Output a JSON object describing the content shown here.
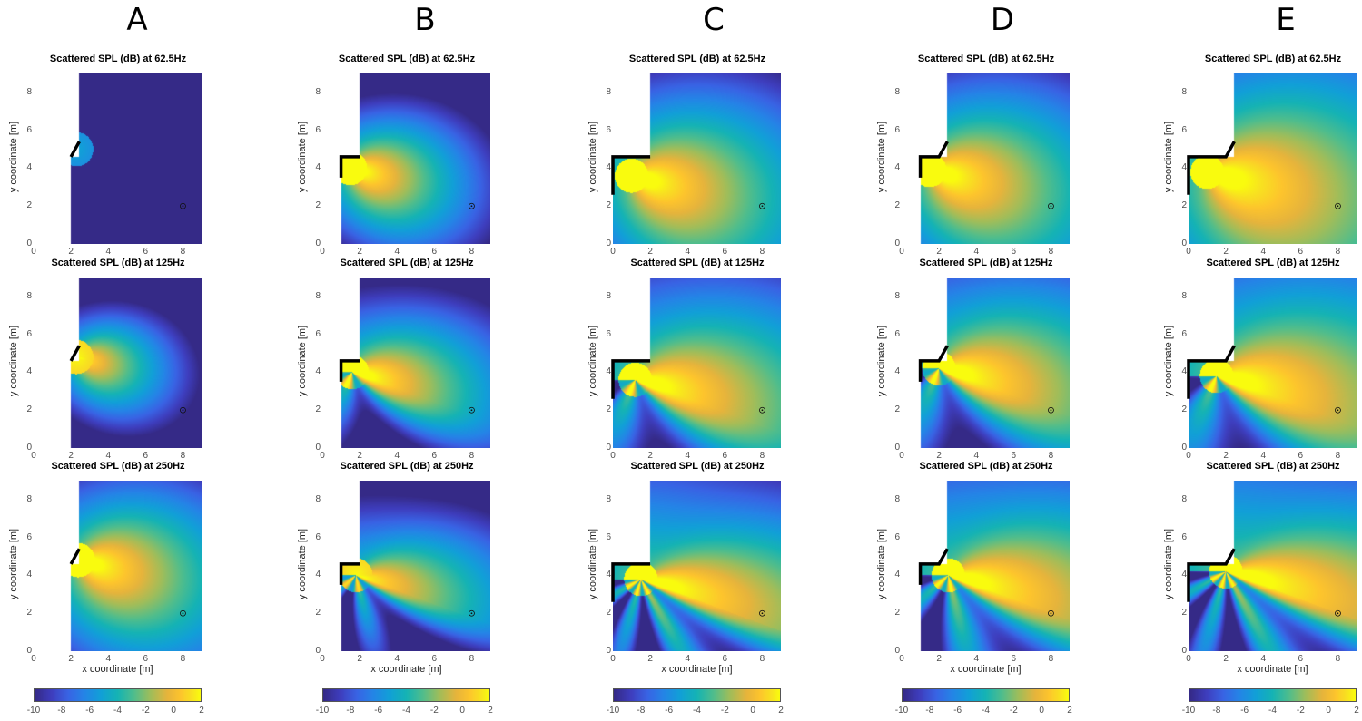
{
  "chart_data": {
    "type": "heatmap",
    "columns": [
      "A",
      "B",
      "C",
      "D",
      "E"
    ],
    "rows": [
      {
        "frequency": "62.5Hz",
        "title": "Scattered SPL (dB) at 62.5Hz"
      },
      {
        "frequency": "125Hz",
        "title": "Scattered SPL (dB) at 125Hz"
      },
      {
        "frequency": "250Hz",
        "title": "Scattered SPL (dB) at 250Hz"
      }
    ],
    "xlabel": "x coordinate [m]",
    "ylabel": "y coordinate [m]",
    "xlim": [
      0,
      9
    ],
    "ylim": [
      0,
      9
    ],
    "xticks": [
      0,
      2,
      4,
      6,
      8
    ],
    "yticks": [
      0,
      2,
      4,
      6,
      8
    ],
    "colorbar": {
      "colormap": "parula",
      "clim": [
        -10,
        2
      ],
      "ticks": [
        -10,
        -8,
        -6,
        -4,
        -2,
        0,
        2
      ]
    },
    "receiver": {
      "x": 8,
      "y": 2,
      "marker": "circled-dot"
    },
    "grid": false,
    "scatterers": {
      "A": {
        "outline": [
          [
            2,
            4.6
          ],
          [
            2.45,
            5.4
          ]
        ],
        "domain_left_x": 2,
        "wall_x": 2.45
      },
      "B": {
        "outline": [
          [
            1,
            3.5
          ],
          [
            1,
            4.6
          ],
          [
            2,
            4.6
          ]
        ],
        "domain_left_x": 1,
        "wall_x": 2
      },
      "C": {
        "outline": [
          [
            0,
            2.6
          ],
          [
            0,
            4.6
          ],
          [
            2,
            4.6
          ]
        ],
        "domain_left_x": 0,
        "wall_x": 2
      },
      "D": {
        "outline": [
          [
            1,
            3.5
          ],
          [
            1,
            4.6
          ],
          [
            2,
            4.6
          ],
          [
            2.45,
            5.4
          ]
        ],
        "domain_left_x": 1,
        "wall_x": 2.45
      },
      "E": {
        "outline": [
          [
            0,
            2.6
          ],
          [
            0,
            4.6
          ],
          [
            2,
            4.6
          ],
          [
            2.45,
            5.4
          ]
        ],
        "domain_left_x": 0,
        "wall_x": 2.45
      }
    },
    "panels": [
      {
        "col": "A",
        "row": 0,
        "source": [
          2.3,
          5.0
        ],
        "peak_db": -6,
        "reach_m": 0.5,
        "lobes": 0
      },
      {
        "col": "A",
        "row": 1,
        "source": [
          2.3,
          4.8
        ],
        "peak_db": 1,
        "reach_m": 4.2,
        "lobes": 0
      },
      {
        "col": "A",
        "row": 2,
        "source": [
          2.4,
          4.8
        ],
        "peak_db": 2,
        "reach_m": 7,
        "lobes": 0
      },
      {
        "col": "B",
        "row": 0,
        "source": [
          1.5,
          4.0
        ],
        "peak_db": 2,
        "reach_m": 5,
        "lobes": 0
      },
      {
        "col": "B",
        "row": 1,
        "source": [
          1.6,
          4.0
        ],
        "peak_db": 2,
        "reach_m": 6.5,
        "lobes": 1
      },
      {
        "col": "B",
        "row": 2,
        "source": [
          1.8,
          4.0
        ],
        "peak_db": 1,
        "reach_m": 7.5,
        "lobes": 2
      },
      {
        "col": "C",
        "row": 0,
        "source": [
          1.0,
          3.6
        ],
        "peak_db": 2,
        "reach_m": 8,
        "lobes": 0
      },
      {
        "col": "C",
        "row": 1,
        "source": [
          1.2,
          3.6
        ],
        "peak_db": 2,
        "reach_m": 10,
        "lobes": 1
      },
      {
        "col": "C",
        "row": 2,
        "source": [
          1.5,
          3.8
        ],
        "peak_db": 2,
        "reach_m": 12,
        "lobes": 3
      },
      {
        "col": "D",
        "row": 0,
        "source": [
          1.5,
          3.9
        ],
        "peak_db": 2,
        "reach_m": 8,
        "lobes": 0
      },
      {
        "col": "D",
        "row": 1,
        "source": [
          2.0,
          4.2
        ],
        "peak_db": 2,
        "reach_m": 10,
        "lobes": 1
      },
      {
        "col": "D",
        "row": 2,
        "source": [
          2.5,
          4.0
        ],
        "peak_db": 2,
        "reach_m": 12,
        "lobes": 2
      },
      {
        "col": "E",
        "row": 0,
        "source": [
          1.0,
          3.8
        ],
        "peak_db": 2,
        "reach_m": 11,
        "lobes": 0
      },
      {
        "col": "E",
        "row": 1,
        "source": [
          1.5,
          3.8
        ],
        "peak_db": 2,
        "reach_m": 12,
        "lobes": 1
      },
      {
        "col": "E",
        "row": 2,
        "source": [
          2.0,
          4.2
        ],
        "peak_db": 2,
        "reach_m": 14,
        "lobes": 3
      }
    ]
  }
}
